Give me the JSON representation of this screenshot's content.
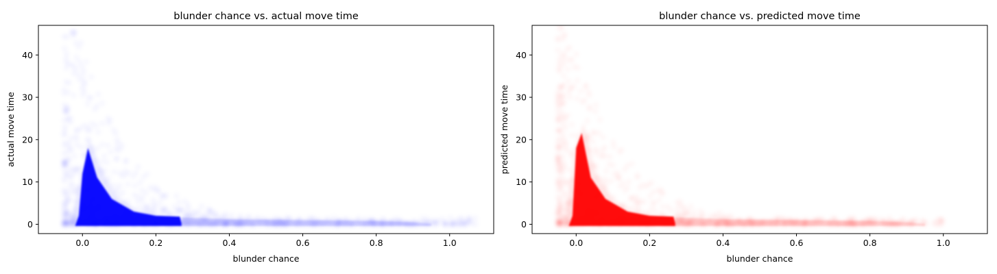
{
  "chart_data": [
    {
      "type": "scatter",
      "title": "blunder chance vs. actual move time",
      "xlabel": "blunder chance",
      "ylabel": "actual move time",
      "xlim": [
        -0.12,
        1.12
      ],
      "ylim": [
        -2.2,
        47
      ],
      "xticks": [
        0.0,
        0.2,
        0.4,
        0.6,
        0.8,
        1.0
      ],
      "yticks": [
        0,
        10,
        20,
        30,
        40
      ],
      "color": "#0000ff",
      "alpha": "very low (dense overplotted cloud)",
      "grid": false,
      "legend": "none",
      "series": [
        {
          "density_profile": {
            "x": [
              0.0,
              0.02,
              0.05,
              0.1,
              0.15,
              0.2,
              0.27,
              0.4,
              0.6,
              0.8,
              0.9
            ],
            "y_max_dense": [
              12,
              20,
              13,
              6,
              3,
              2,
              1.5,
              1.2,
              1.0,
              0.8,
              0.5
            ]
          },
          "x_range": [
            -0.05,
            1.07
          ],
          "y_range": [
            0,
            44
          ]
        }
      ]
    },
    {
      "type": "scatter",
      "title": "blunder chance vs. predicted move time",
      "xlabel": "blunder chance",
      "ylabel": "predicted move time",
      "xlim": [
        -0.12,
        1.12
      ],
      "ylim": [
        -2.2,
        47
      ],
      "xticks": [
        0.0,
        0.2,
        0.4,
        0.6,
        0.8,
        1.0
      ],
      "yticks": [
        0,
        10,
        20,
        30,
        40
      ],
      "color": "#ff0000",
      "alpha": "very low (dense overplotted cloud)",
      "grid": false,
      "legend": "none",
      "series": [
        {
          "density_profile": {
            "x": [
              0.0,
              0.02,
              0.05,
              0.1,
              0.15,
              0.2,
              0.27,
              0.4,
              0.6,
              0.8,
              0.9
            ],
            "y_max_dense": [
              18,
              24,
              13,
              6,
              3,
              2,
              1.5,
              1.2,
              1.0,
              0.8,
              0.5
            ]
          },
          "x_range": [
            -0.05,
            1.0
          ],
          "y_range": [
            0,
            45
          ]
        }
      ]
    }
  ]
}
